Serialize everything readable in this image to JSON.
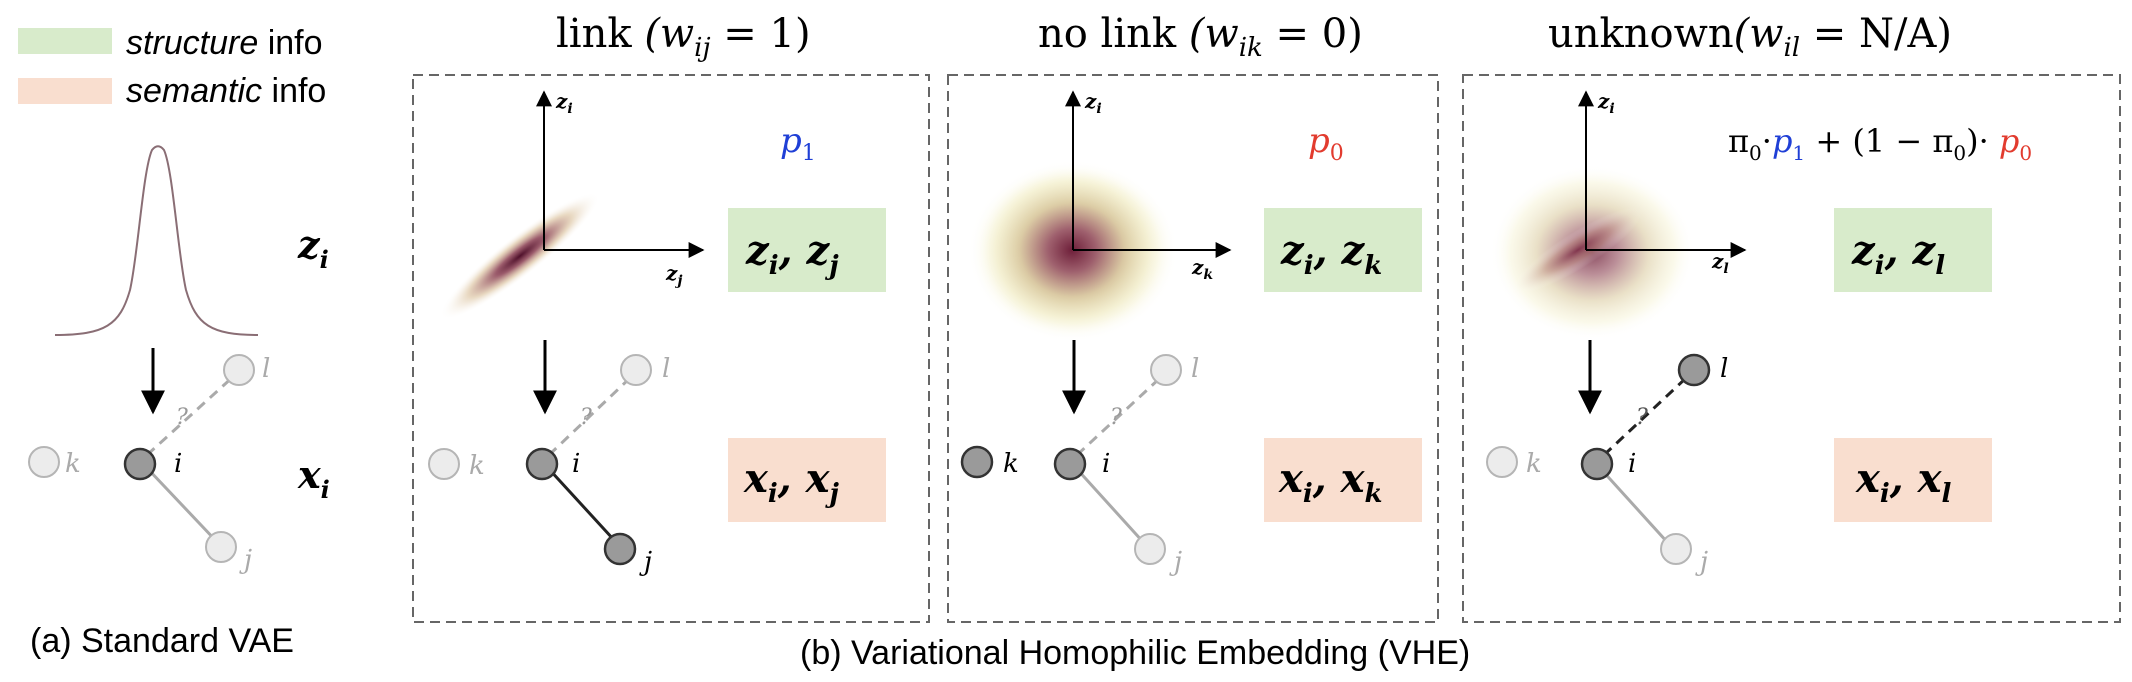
{
  "legend": {
    "structure_label_em": "structure",
    "structure_label_rest": " info",
    "semantic_label_em": "semantic",
    "semantic_label_rest": " info",
    "structure_color": "#d8ebcb",
    "semantic_color": "#f9decf"
  },
  "colors": {
    "blue": "#1f3fd6",
    "red": "#e23b2e",
    "node_dark": "#9a9a9a",
    "node_light": "#ececec",
    "box_green": "#d8ebcb",
    "box_orange": "#f9decf"
  },
  "panel_a": {
    "z_label": "z",
    "z_sub": "i",
    "x_label": "x",
    "x_sub": "i",
    "caption": "(a) Standard VAE",
    "node_k": "k",
    "node_i": "i",
    "node_l": "l",
    "node_j": "j",
    "question": "?"
  },
  "panel_b": {
    "caption": "(b) Variational Homophilic Embedding (VHE)",
    "link": {
      "title_prefix": "link",
      "title_math": "(w",
      "title_sub": "ij",
      "title_eq": " = 1)",
      "prob": "p",
      "prob_sub": "1",
      "axis_z": "z",
      "axis_y_sub": "i",
      "axis_x_sub": "j",
      "z_box_a": "z",
      "z_box_a_sub": "i",
      "z_box_b": "z",
      "z_box_b_sub": "j",
      "x_box_a": "x",
      "x_box_a_sub": "i",
      "x_box_b": "x",
      "x_box_b_sub": "j",
      "node_k": "k",
      "node_i": "i",
      "node_l": "l",
      "node_j": "j",
      "question": "?"
    },
    "nolink": {
      "title_prefix": "no link",
      "title_math": "(w",
      "title_sub": "ik",
      "title_eq": " = 0)",
      "prob": "p",
      "prob_sub": "0",
      "axis_z": "z",
      "axis_y_sub": "i",
      "axis_x_sub": "k",
      "z_box_a": "z",
      "z_box_a_sub": "i",
      "z_box_b": "z",
      "z_box_b_sub": "k",
      "x_box_a": "x",
      "x_box_a_sub": "i",
      "x_box_b": "x",
      "x_box_b_sub": "k",
      "node_k": "k",
      "node_i": "i",
      "node_l": "l",
      "node_j": "j",
      "question": "?"
    },
    "unknown": {
      "title_prefix": "unknown",
      "title_math": "(w",
      "title_sub": "il",
      "title_eq": " = N/A)",
      "mix_pi": "π",
      "mix_pi_sub": "0",
      "mix_dot": "·",
      "mix_p1": "p",
      "mix_p1_sub": "1",
      "mix_plus": " + (1 − ",
      "mix_pi2": "π",
      "mix_pi2_sub": "0",
      "mix_close": ")· ",
      "mix_p0": "p",
      "mix_p0_sub": "0",
      "axis_z": "z",
      "axis_y_sub": "i",
      "axis_x_sub": "l",
      "z_box_a": "z",
      "z_box_a_sub": "i",
      "z_box_b": "z",
      "z_box_b_sub": "l",
      "x_box_a": "x",
      "x_box_a_sub": "i",
      "x_box_b": "x",
      "x_box_b_sub": "l",
      "node_k": "k",
      "node_i": "i",
      "node_l": "l",
      "node_j": "j",
      "question": "?"
    }
  }
}
